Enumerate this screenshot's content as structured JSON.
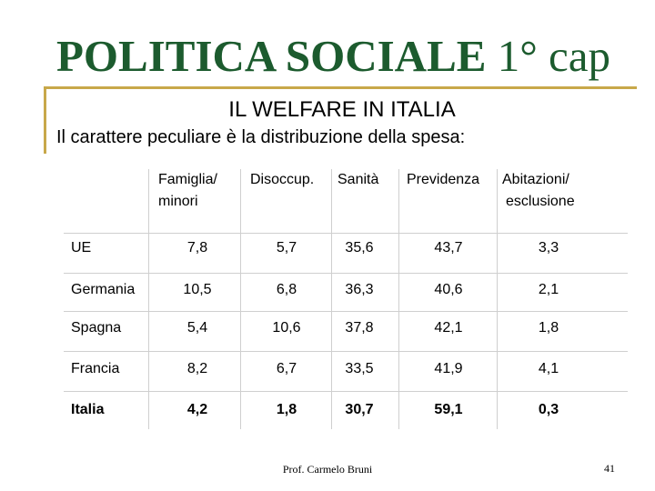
{
  "title": {
    "main": "POLITICA SOCIALE",
    "suffix": "1° cap"
  },
  "subtitle": "IL WELFARE IN ITALIA",
  "intro": "Il carattere peculiare è la distribuzione della spesa:",
  "table": {
    "headers": [
      {
        "line1": "Famiglia/",
        "line2": "minori"
      },
      {
        "line1": "Disoccup.",
        "line2": ""
      },
      {
        "line1": "Sanità",
        "line2": ""
      },
      {
        "line1": "Previdenza",
        "line2": ""
      },
      {
        "line1": "Abitazioni/",
        "line2": "esclusione"
      }
    ],
    "rows": [
      {
        "country": "UE",
        "values": [
          "7,8",
          "5,7",
          "35,6",
          "43,7",
          "3,3"
        ]
      },
      {
        "country": "Germania",
        "values": [
          "10,5",
          "6,8",
          "36,3",
          "40,6",
          "2,1"
        ]
      },
      {
        "country": "Spagna",
        "values": [
          "5,4",
          "10,6",
          "37,8",
          "42,1",
          "1,8"
        ]
      },
      {
        "country": "Francia",
        "values": [
          "8,2",
          "6,7",
          "33,5",
          "41,9",
          "4,1"
        ]
      },
      {
        "country": "Italia",
        "values": [
          "4,2",
          "1,8",
          "30,7",
          "59,1",
          "0,3"
        ]
      }
    ]
  },
  "footer": {
    "author": "Prof. Carmelo Bruni",
    "page": "41"
  },
  "colors": {
    "title": "#1c5b2e",
    "rule": "#c8a84a",
    "grid": "#cfcfcf"
  }
}
